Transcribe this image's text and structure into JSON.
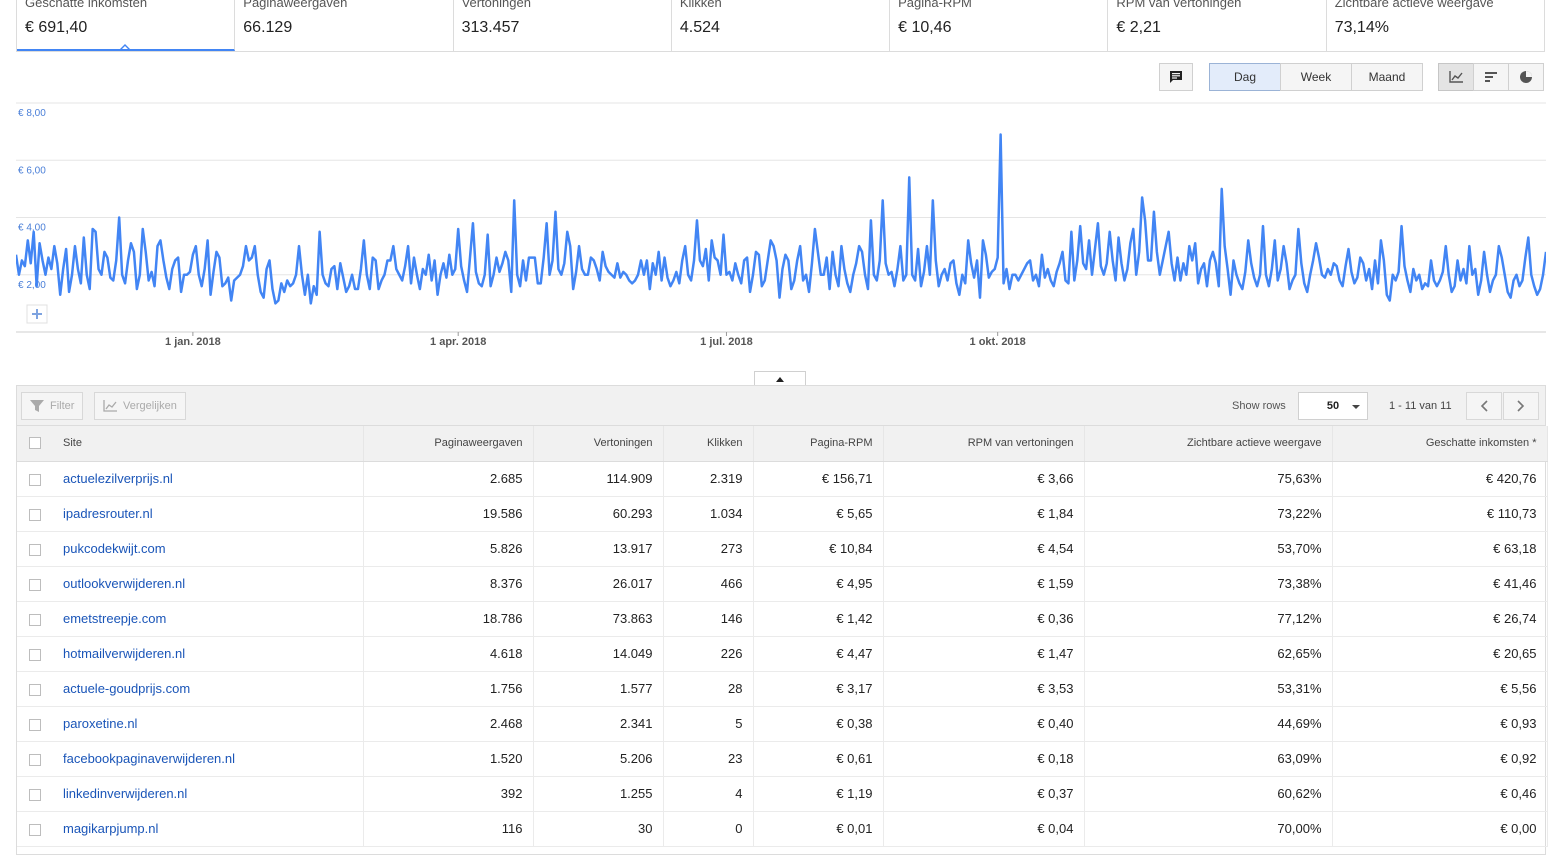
{
  "metrics": [
    {
      "label": "Geschatte inkomsten",
      "value": "€ 691,40",
      "active": true
    },
    {
      "label": "Paginaweergaven",
      "value": "66.129"
    },
    {
      "label": "Vertoningen",
      "value": "313.457"
    },
    {
      "label": "Klikken",
      "value": "4.524"
    },
    {
      "label": "Pagina-RPM",
      "value": "€ 10,46"
    },
    {
      "label": "RPM van vertoningen",
      "value": "€ 2,21"
    },
    {
      "label": "Zichtbare actieve weergave",
      "value": "73,14%"
    }
  ],
  "toolbar": {
    "comment_icon": "comment-icon",
    "granularity": [
      "Dag",
      "Week",
      "Maand"
    ],
    "selected_granularity": "Dag",
    "view_icons": [
      "line-chart-icon",
      "bar-chart-icon",
      "pie-chart-icon"
    ],
    "selected_view": "line-chart-icon"
  },
  "chart_data": {
    "type": "line",
    "series": [
      {
        "values": [
          2.7,
          2.0,
          2.5,
          2.3,
          3.2,
          2.4,
          3.5,
          1.6,
          3.1,
          2.5,
          2.0,
          2.6,
          2.2,
          3.0,
          2.4,
          1.3,
          2.2,
          2.9,
          1.4,
          2.0,
          3.0,
          2.2,
          1.7,
          3.3,
          2.0,
          1.5,
          3.6,
          3.5,
          2.2,
          2.0,
          2.8,
          2.6,
          1.9,
          1.8,
          2.5,
          4.0,
          2.0,
          1.7,
          2.5,
          3.1,
          2.8,
          1.5,
          2.0,
          3.6,
          2.8,
          1.8,
          2.1,
          1.6,
          3.0,
          3.2,
          2.5,
          1.9,
          1.5,
          2.2,
          2.5,
          2.6,
          1.4,
          2.0,
          2.0,
          2.1,
          2.7,
          3.0,
          2.0,
          1.6,
          2.2,
          3.2,
          1.3,
          2.1,
          2.8,
          2.6,
          1.6,
          1.7,
          1.9,
          1.1,
          1.8,
          1.9,
          2.0,
          2.3,
          3.0,
          2.5,
          2.6,
          3.0,
          2.0,
          1.4,
          1.2,
          2.2,
          2.5,
          1.5,
          1.0,
          1.1,
          1.7,
          1.4,
          1.8,
          1.6,
          1.7,
          2.0,
          3.0,
          2.0,
          1.3,
          2.0,
          1.0,
          1.6,
          1.3,
          3.5,
          2.0,
          1.7,
          1.6,
          2.2,
          2.3,
          1.5,
          2.4,
          1.9,
          1.4,
          1.6,
          2.0,
          1.5,
          1.5,
          2.2,
          3.2,
          2.0,
          1.5,
          2.6,
          2.5,
          1.5,
          1.8,
          2.0,
          2.5,
          2.5,
          3.0,
          2.2,
          2.0,
          1.8,
          2.3,
          3.0,
          1.7,
          2.6,
          2.0,
          1.5,
          2.2,
          2.0,
          2.7,
          1.8,
          2.5,
          1.3,
          2.0,
          2.4,
          1.9,
          2.7,
          2.0,
          2.2,
          3.6,
          2.3,
          1.8,
          1.4,
          2.6,
          3.8,
          2.1,
          1.7,
          1.6,
          2.0,
          3.4,
          1.6,
          2.0,
          2.6,
          2.1,
          2.4,
          2.8,
          2.5,
          1.4,
          4.6,
          2.0,
          1.6,
          2.5,
          1.8,
          2.6,
          2.6,
          2.6,
          1.7,
          1.7,
          2.6,
          3.8,
          2.0,
          2.5,
          4.2,
          2.2,
          2.0,
          2.4,
          3.5,
          3.0,
          1.5,
          2.1,
          3.0,
          2.2,
          2.0,
          2.0,
          2.6,
          2.5,
          2.2,
          1.8,
          2.8,
          2.3,
          2.1,
          2.0,
          1.9,
          2.4,
          1.9,
          2.1,
          2.0,
          1.8,
          1.7,
          1.8,
          2.0,
          2.5,
          2.0,
          2.5,
          1.5,
          2.4,
          2.0,
          2.8,
          1.8,
          2.6,
          1.9,
          1.6,
          1.8,
          2.1,
          1.7,
          2.5,
          3.0,
          2.0,
          1.8,
          2.5,
          3.9,
          2.5,
          2.3,
          2.9,
          1.8,
          3.2,
          2.6,
          2.5,
          2.0,
          3.4,
          2.0,
          2.1,
          1.8,
          2.4,
          2.0,
          1.7,
          2.5,
          2.6,
          1.4,
          2.0,
          2.8,
          2.7,
          1.6,
          1.8,
          2.5,
          3.2,
          3.0,
          2.5,
          1.2,
          2.2,
          2.7,
          2.5,
          1.5,
          1.8,
          2.5,
          3.0,
          1.8,
          2.0,
          1.4,
          2.4,
          3.6,
          2.8,
          2.0,
          2.0,
          2.6,
          1.5,
          2.8,
          2.0,
          1.6,
          3.0,
          2.2,
          1.7,
          1.4,
          2.0,
          2.4,
          3.0,
          2.8,
          2.0,
          1.5,
          3.9,
          2.0,
          1.8,
          2.5,
          4.6,
          2.4,
          2.0,
          2.1,
          1.6,
          2.2,
          3.0,
          1.8,
          2.0,
          5.4,
          2.0,
          1.8,
          2.9,
          1.6,
          2.1,
          3.0,
          2.0,
          4.6,
          2.5,
          1.6,
          2.0,
          2.2,
          1.8,
          2.4,
          2.5,
          1.7,
          1.3,
          2.0,
          1.7,
          3.2,
          2.4,
          1.9,
          2.5,
          1.2,
          3.2,
          2.7,
          1.9,
          2.1,
          2.2,
          2.6,
          6.9,
          1.7,
          2.2,
          1.5,
          2.0,
          2.0,
          1.8,
          2.0,
          2.2,
          2.4,
          2.5,
          1.8,
          2.0,
          1.6,
          2.7,
          1.9,
          2.2,
          1.8,
          1.6,
          2.1,
          2.4,
          2.8,
          1.8,
          1.7,
          3.5,
          1.8,
          2.5,
          3.7,
          2.4,
          2.2,
          3.2,
          2.0,
          2.9,
          3.8,
          2.3,
          2.0,
          2.4,
          3.5,
          2.5,
          1.8,
          3.3,
          2.4,
          1.8,
          2.2,
          3.1,
          3.6,
          2.0,
          2.8,
          4.7,
          3.9,
          2.5,
          2.5,
          4.2,
          2.8,
          2.0,
          2.5,
          3.0,
          3.5,
          2.4,
          1.8,
          2.6,
          1.8,
          2.4,
          2.0,
          3.0,
          2.5,
          3.1,
          1.7,
          2.2,
          2.4,
          1.6,
          2.5,
          2.8,
          2.4,
          1.6,
          5.0,
          3.0,
          2.2,
          1.3,
          2.5,
          2.0,
          1.7,
          1.5,
          2.1,
          3.2,
          2.4,
          1.9,
          1.6,
          2.0,
          3.7,
          2.0,
          1.6,
          2.2,
          3.2,
          1.8,
          2.2,
          3.0,
          2.4,
          1.5,
          1.8,
          2.0,
          3.6,
          2.4,
          1.7,
          1.4,
          2.0,
          2.5,
          3.1,
          2.6,
          2.0,
          1.9,
          2.2,
          2.0,
          2.4,
          2.3,
          1.8,
          1.6,
          2.3,
          2.9,
          2.1,
          1.7,
          1.9,
          2.6,
          2.4,
          1.8,
          2.2,
          1.5,
          2.5,
          1.7,
          3.2,
          2.5,
          1.3,
          1.1,
          2.0,
          1.8,
          2.1,
          3.7,
          2.3,
          1.8,
          1.4,
          2.2,
          1.8,
          2.0,
          1.5,
          1.7,
          1.6,
          2.5,
          1.8,
          1.6,
          1.8,
          2.1,
          3.0,
          2.0,
          1.4,
          1.6,
          2.5,
          1.8,
          2.2,
          1.7,
          3.0,
          2.0,
          2.2,
          1.3,
          1.8,
          2.8,
          2.0,
          1.4,
          1.8,
          2.0,
          3.0,
          2.6,
          2.0,
          1.4,
          1.2,
          1.8,
          2.0,
          1.6,
          1.8,
          2.6,
          3.3,
          2.0,
          1.6,
          1.3,
          1.5,
          2.0,
          2.8
        ]
      }
    ],
    "ylim": [
      0,
      8
    ],
    "yticks": [
      {
        "value": 2,
        "label": "€ 2,00"
      },
      {
        "value": 4,
        "label": "€ 4,00"
      },
      {
        "value": 6,
        "label": "€ 6,00"
      },
      {
        "value": 8,
        "label": "€ 8,00"
      }
    ],
    "xticks": [
      {
        "index": 60,
        "label": "1 jan. 2018"
      },
      {
        "index": 150,
        "label": "1 apr. 2018"
      },
      {
        "index": 241,
        "label": "1 jul. 2018"
      },
      {
        "index": 333,
        "label": "1 okt. 2018"
      }
    ],
    "grid": true,
    "color": "#4285f4"
  },
  "table": {
    "filter_label": "Filter",
    "compare_label": "Vergelijken",
    "show_rows_label": "Show rows",
    "rows_value": "50",
    "pager_text": "1 - 11 van 11",
    "columns": [
      "Site",
      "Paginaweergaven",
      "Vertoningen",
      "Klikken",
      "Pagina-RPM",
      "RPM van vertoningen",
      "Zichtbare actieve weergave",
      "Geschatte inkomsten *"
    ],
    "rows": [
      [
        "actuelezilverprijs.nl",
        "2.685",
        "114.909",
        "2.319",
        "€ 156,71",
        "€ 3,66",
        "75,63%",
        "€ 420,76"
      ],
      [
        "ipadresrouter.nl",
        "19.586",
        "60.293",
        "1.034",
        "€ 5,65",
        "€ 1,84",
        "73,22%",
        "€ 110,73"
      ],
      [
        "pukcodekwijt.com",
        "5.826",
        "13.917",
        "273",
        "€ 10,84",
        "€ 4,54",
        "53,70%",
        "€ 63,18"
      ],
      [
        "outlookverwijderen.nl",
        "8.376",
        "26.017",
        "466",
        "€ 4,95",
        "€ 1,59",
        "73,38%",
        "€ 41,46"
      ],
      [
        "emetstreepje.com",
        "18.786",
        "73.863",
        "146",
        "€ 1,42",
        "€ 0,36",
        "77,12%",
        "€ 26,74"
      ],
      [
        "hotmailverwijderen.nl",
        "4.618",
        "14.049",
        "226",
        "€ 4,47",
        "€ 1,47",
        "62,65%",
        "€ 20,65"
      ],
      [
        "actuele-goudprijs.com",
        "1.756",
        "1.577",
        "28",
        "€ 3,17",
        "€ 3,53",
        "53,31%",
        "€ 5,56"
      ],
      [
        "paroxetine.nl",
        "2.468",
        "2.341",
        "5",
        "€ 0,38",
        "€ 0,40",
        "44,69%",
        "€ 0,93"
      ],
      [
        "facebookpaginaverwijderen.nl",
        "1.520",
        "5.206",
        "23",
        "€ 0,61",
        "€ 0,18",
        "63,09%",
        "€ 0,92"
      ],
      [
        "linkedinverwijderen.nl",
        "392",
        "1.255",
        "4",
        "€ 1,19",
        "€ 0,37",
        "60,62%",
        "€ 0,46"
      ],
      [
        "magikarpjump.nl",
        "116",
        "30",
        "0",
        "€ 0,01",
        "€ 0,04",
        "70,00%",
        "€ 0,00"
      ]
    ]
  }
}
